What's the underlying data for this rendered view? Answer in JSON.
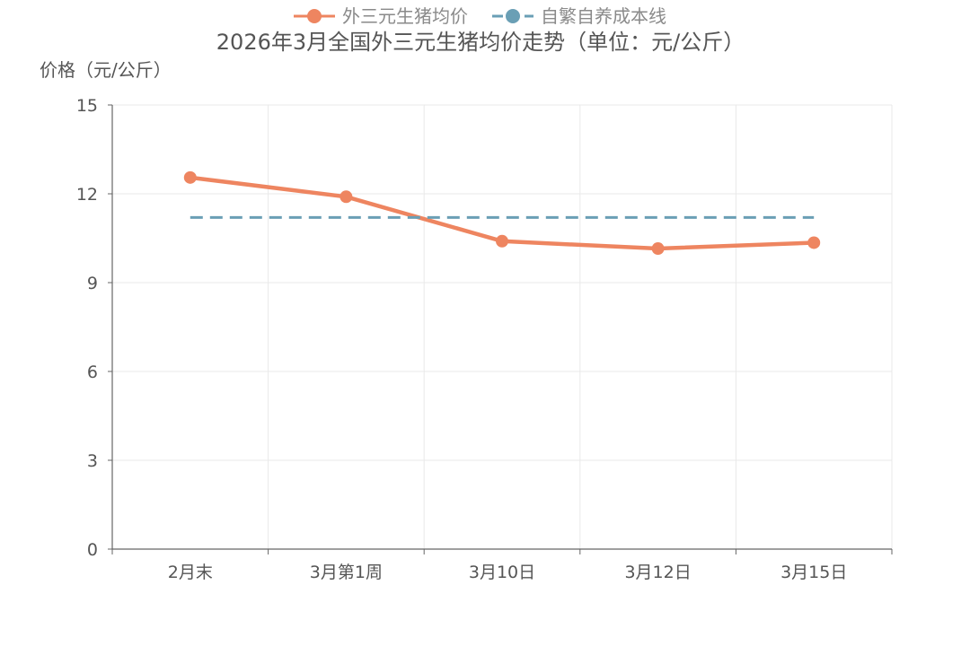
{
  "chart_data": {
    "type": "line",
    "title": "2026年3月全国外三元生猪均价走势（单位：元/公斤）",
    "ylabel": "价格（元/公斤）",
    "xlabel": "",
    "categories": [
      "2月末",
      "3月第1周",
      "3月10日",
      "3月12日",
      "3月15日"
    ],
    "ylim": [
      0,
      15
    ],
    "yticks": [
      0,
      3,
      6,
      9,
      12,
      15
    ],
    "grid": true,
    "legend": "top-center",
    "series": [
      {
        "name": "外三元生猪均价",
        "values": [
          12.55,
          11.9,
          10.4,
          10.15,
          10.35
        ],
        "color": "#ee8560",
        "style": "solid",
        "markers": true
      },
      {
        "name": "自繁自养成本线",
        "values": [
          11.2,
          11.2,
          11.2,
          11.2,
          11.2
        ],
        "color": "#6a9fb5",
        "style": "dashed",
        "markers": false
      }
    ]
  }
}
